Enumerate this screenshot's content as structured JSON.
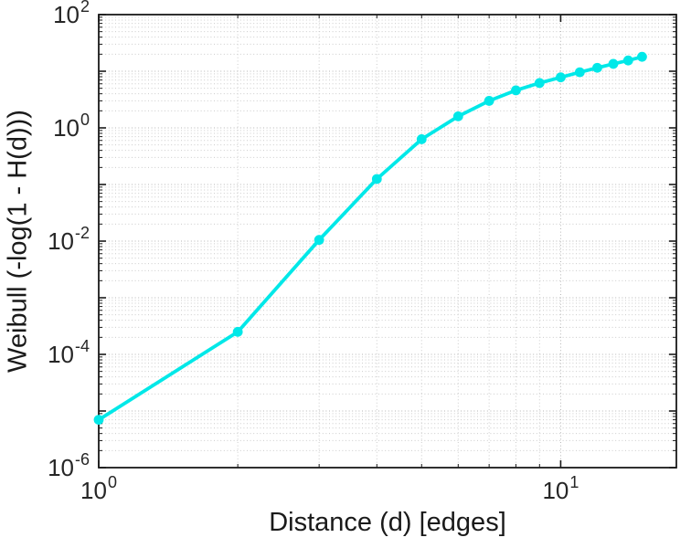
{
  "figure": {
    "background": "#ffffff",
    "axis_color": "#1a1a1a",
    "tick_label_color": "#262626",
    "major_grid_color": "#b5b5b5",
    "minor_grid_color": "#cccccc"
  },
  "chart_data": {
    "type": "line",
    "title": "",
    "xlabel": "Distance (d) [edges]",
    "ylabel": "Weibull (-log(1 - H(d)))",
    "x_scale": "log",
    "y_scale": "log",
    "xlim": [
      1,
      17.8
    ],
    "ylim": [
      1e-06,
      100
    ],
    "grid": "on",
    "minor_grid": "on",
    "legend": "none",
    "x_ticks": [
      {
        "value": 1,
        "base": "10",
        "exp": "0"
      },
      {
        "value": 10,
        "base": "10",
        "exp": "1"
      }
    ],
    "y_ticks": [
      {
        "value": 100,
        "base": "10",
        "exp": "2"
      },
      {
        "value": 1,
        "base": "10",
        "exp": "0"
      },
      {
        "value": 0.01,
        "base": "10",
        "exp": "-2"
      },
      {
        "value": 0.0001,
        "base": "10",
        "exp": "-4"
      },
      {
        "value": 1e-06,
        "base": "10",
        "exp": "-6"
      }
    ],
    "series": [
      {
        "color": "#00e8e8",
        "marker": "circle",
        "x": [
          1,
          2,
          3,
          4,
          5,
          6,
          7,
          8,
          9,
          10,
          11,
          12,
          13,
          14,
          15
        ],
        "y": [
          7e-06,
          0.00025,
          0.0105,
          0.125,
          0.63,
          1.6,
          3.0,
          4.6,
          6.2,
          7.8,
          9.6,
          11.5,
          13.5,
          15.5,
          18.0
        ]
      }
    ]
  }
}
